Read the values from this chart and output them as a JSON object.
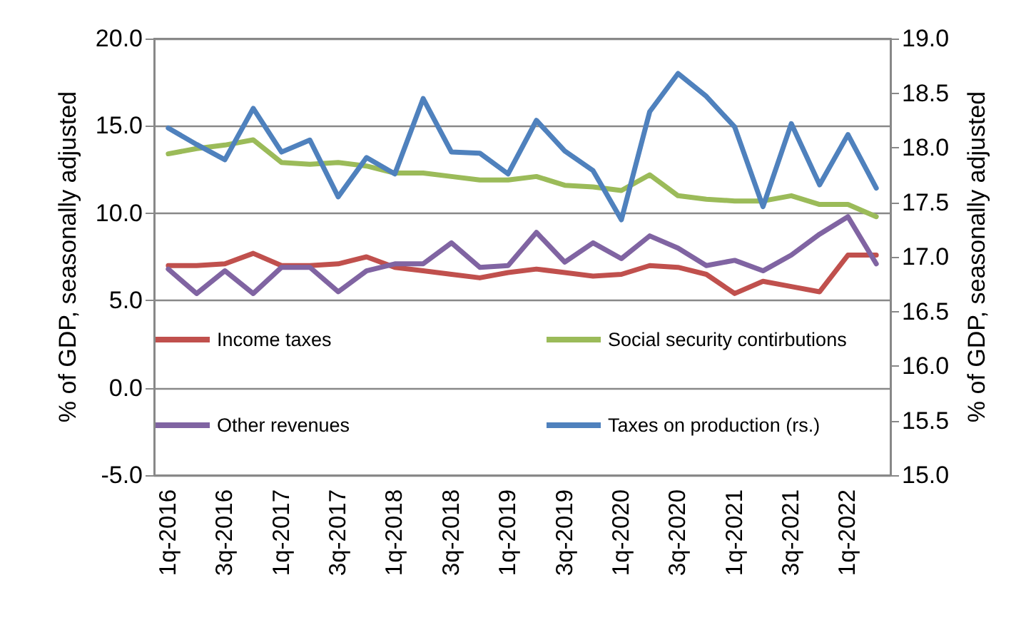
{
  "chart_data": {
    "type": "line",
    "ylabel": "% of GDP, seasonally adjusted",
    "y2label": "% of GDP, seasonally adjusted",
    "categories": [
      "1q-2016",
      null,
      "3q-2016",
      null,
      "1q-2017",
      null,
      "3q-2017",
      null,
      "1q-2018",
      null,
      "3q-2018",
      null,
      "1q-2019",
      null,
      "3q-2019",
      null,
      "1q-2020",
      null,
      "3q-2020",
      null,
      "1q-2021",
      null,
      "3q-2021",
      null,
      "1q-2022",
      null
    ],
    "series": [
      {
        "name": "Income taxes",
        "color": "#c0504d",
        "values": [
          7.0,
          7.0,
          7.1,
          7.7,
          7.0,
          7.0,
          7.1,
          7.5,
          6.9,
          6.7,
          6.5,
          6.3,
          6.6,
          6.8,
          6.6,
          6.4,
          6.5,
          7.0,
          6.9,
          6.5,
          5.4,
          6.1,
          5.8,
          5.5,
          7.6,
          7.6
        ]
      },
      {
        "name": "Social security contirbutions",
        "color": "#9bbb59",
        "values": [
          13.4,
          13.7,
          13.9,
          14.2,
          12.9,
          12.8,
          12.9,
          12.7,
          12.3,
          12.3,
          12.1,
          11.9,
          11.9,
          12.1,
          11.6,
          11.5,
          11.3,
          12.2,
          11.0,
          10.8,
          10.7,
          10.7,
          11.0,
          10.5,
          10.5,
          9.8
        ]
      },
      {
        "name": "Other revenues",
        "color": "#8064a2",
        "values": [
          6.8,
          5.4,
          6.7,
          5.4,
          6.9,
          6.9,
          5.5,
          6.7,
          7.1,
          7.1,
          8.3,
          6.9,
          7.0,
          8.9,
          7.2,
          8.3,
          7.4,
          8.7,
          8.0,
          7.0,
          7.3,
          6.7,
          7.6,
          8.8,
          9.8,
          7.1
        ]
      },
      {
        "name": "Taxes on production (rs.)",
        "color": "#4f81bd",
        "axis": "y2",
        "values": [
          18.18,
          18.03,
          17.89,
          18.36,
          17.96,
          18.07,
          17.55,
          17.91,
          17.76,
          18.45,
          17.96,
          17.95,
          17.76,
          18.25,
          17.97,
          17.79,
          17.34,
          18.33,
          18.68,
          18.47,
          18.19,
          17.46,
          18.22,
          17.66,
          18.12,
          17.63
        ]
      }
    ],
    "ylim": [
      -5,
      20
    ],
    "yticks": [
      {
        "value": -5,
        "label": "-5.0"
      },
      {
        "value": 0,
        "label": "0.0"
      },
      {
        "value": 5,
        "label": "5.0"
      },
      {
        "value": 10,
        "label": "10.0"
      },
      {
        "value": 15,
        "label": "15.0"
      },
      {
        "value": 20,
        "label": "20.0"
      }
    ],
    "y2lim": [
      15,
      19
    ],
    "y2ticks": [
      {
        "value": 15,
        "label": "15.0"
      },
      {
        "value": 15.5,
        "label": "15.5"
      },
      {
        "value": 16,
        "label": "16.0"
      },
      {
        "value": 16.5,
        "label": "16.5"
      },
      {
        "value": 17,
        "label": "17.0"
      },
      {
        "value": 17.5,
        "label": "17.5"
      },
      {
        "value": 18,
        "label": "18.0"
      },
      {
        "value": 18.5,
        "label": "18.5"
      },
      {
        "value": 19,
        "label": "19.0"
      }
    ],
    "grid": "y",
    "legend": "bottom",
    "marker": "none",
    "line_style": "solid"
  }
}
